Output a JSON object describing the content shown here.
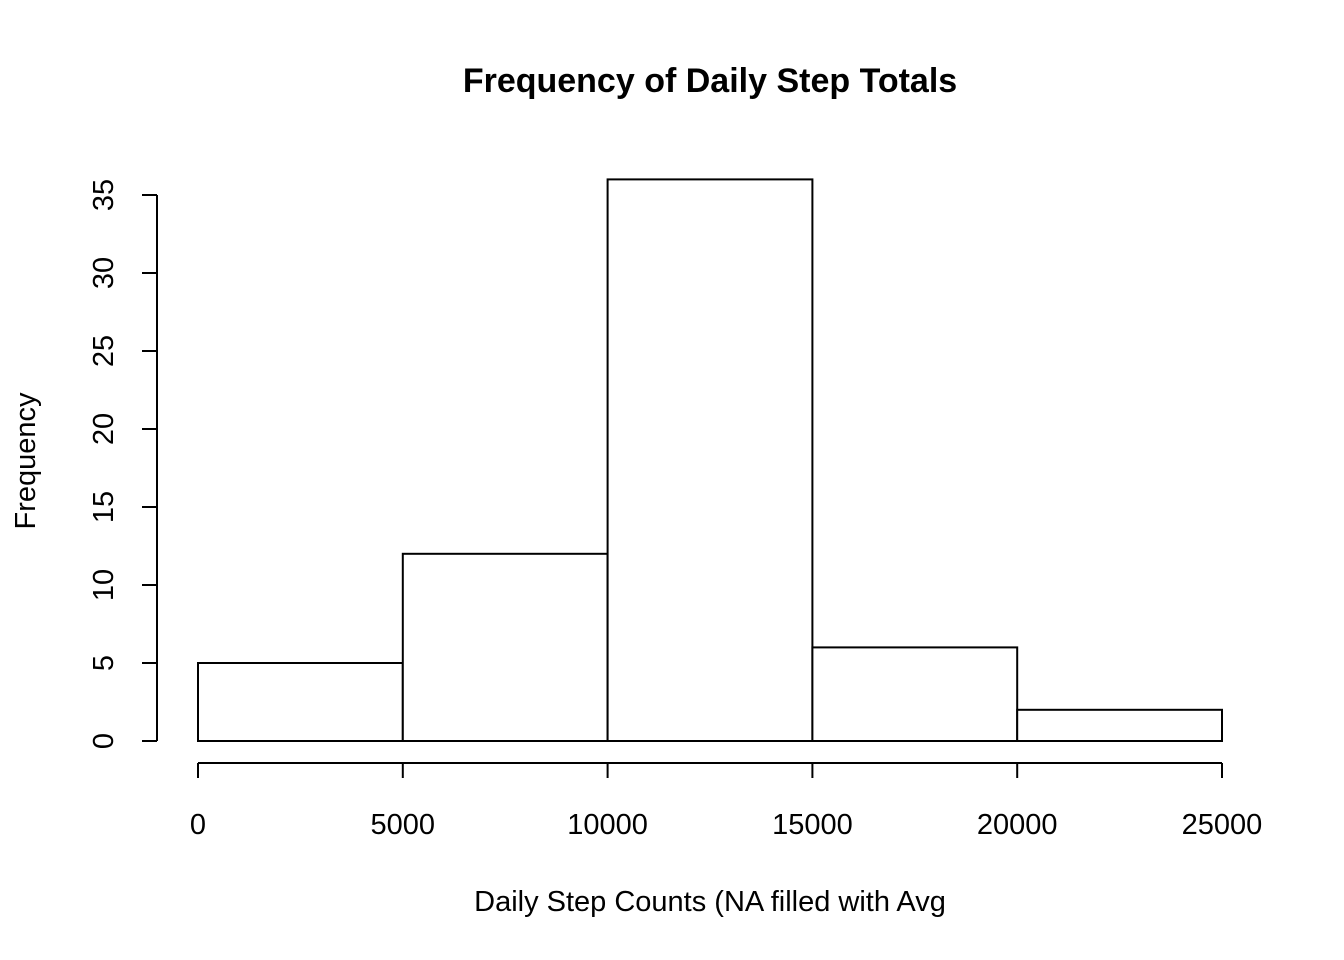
{
  "chart_data": {
    "type": "bar",
    "title": "Frequency of Daily Step Totals",
    "xlabel": "Daily Step Counts (NA filled with Avg",
    "ylabel": "Frequency",
    "bins": [
      {
        "from": 0,
        "to": 5000,
        "count": 5
      },
      {
        "from": 5000,
        "to": 10000,
        "count": 12
      },
      {
        "from": 10000,
        "to": 15000,
        "count": 36
      },
      {
        "from": 15000,
        "to": 20000,
        "count": 6
      },
      {
        "from": 20000,
        "to": 25000,
        "count": 2
      }
    ],
    "xlim": [
      0,
      25000
    ],
    "ylim": [
      0,
      35
    ],
    "x_ticks": [
      0,
      5000,
      10000,
      15000,
      20000,
      25000
    ],
    "x_tick_labels": [
      "0",
      "5000",
      "10000",
      "15000",
      "20000",
      "25000"
    ],
    "y_ticks": [
      0,
      5,
      10,
      15,
      20,
      25,
      30,
      35
    ],
    "y_tick_labels": [
      "0",
      "5",
      "10",
      "15",
      "20",
      "25",
      "30",
      "35"
    ],
    "grid": false,
    "bar_fill": "#ffffff",
    "bar_stroke": "#000000"
  }
}
